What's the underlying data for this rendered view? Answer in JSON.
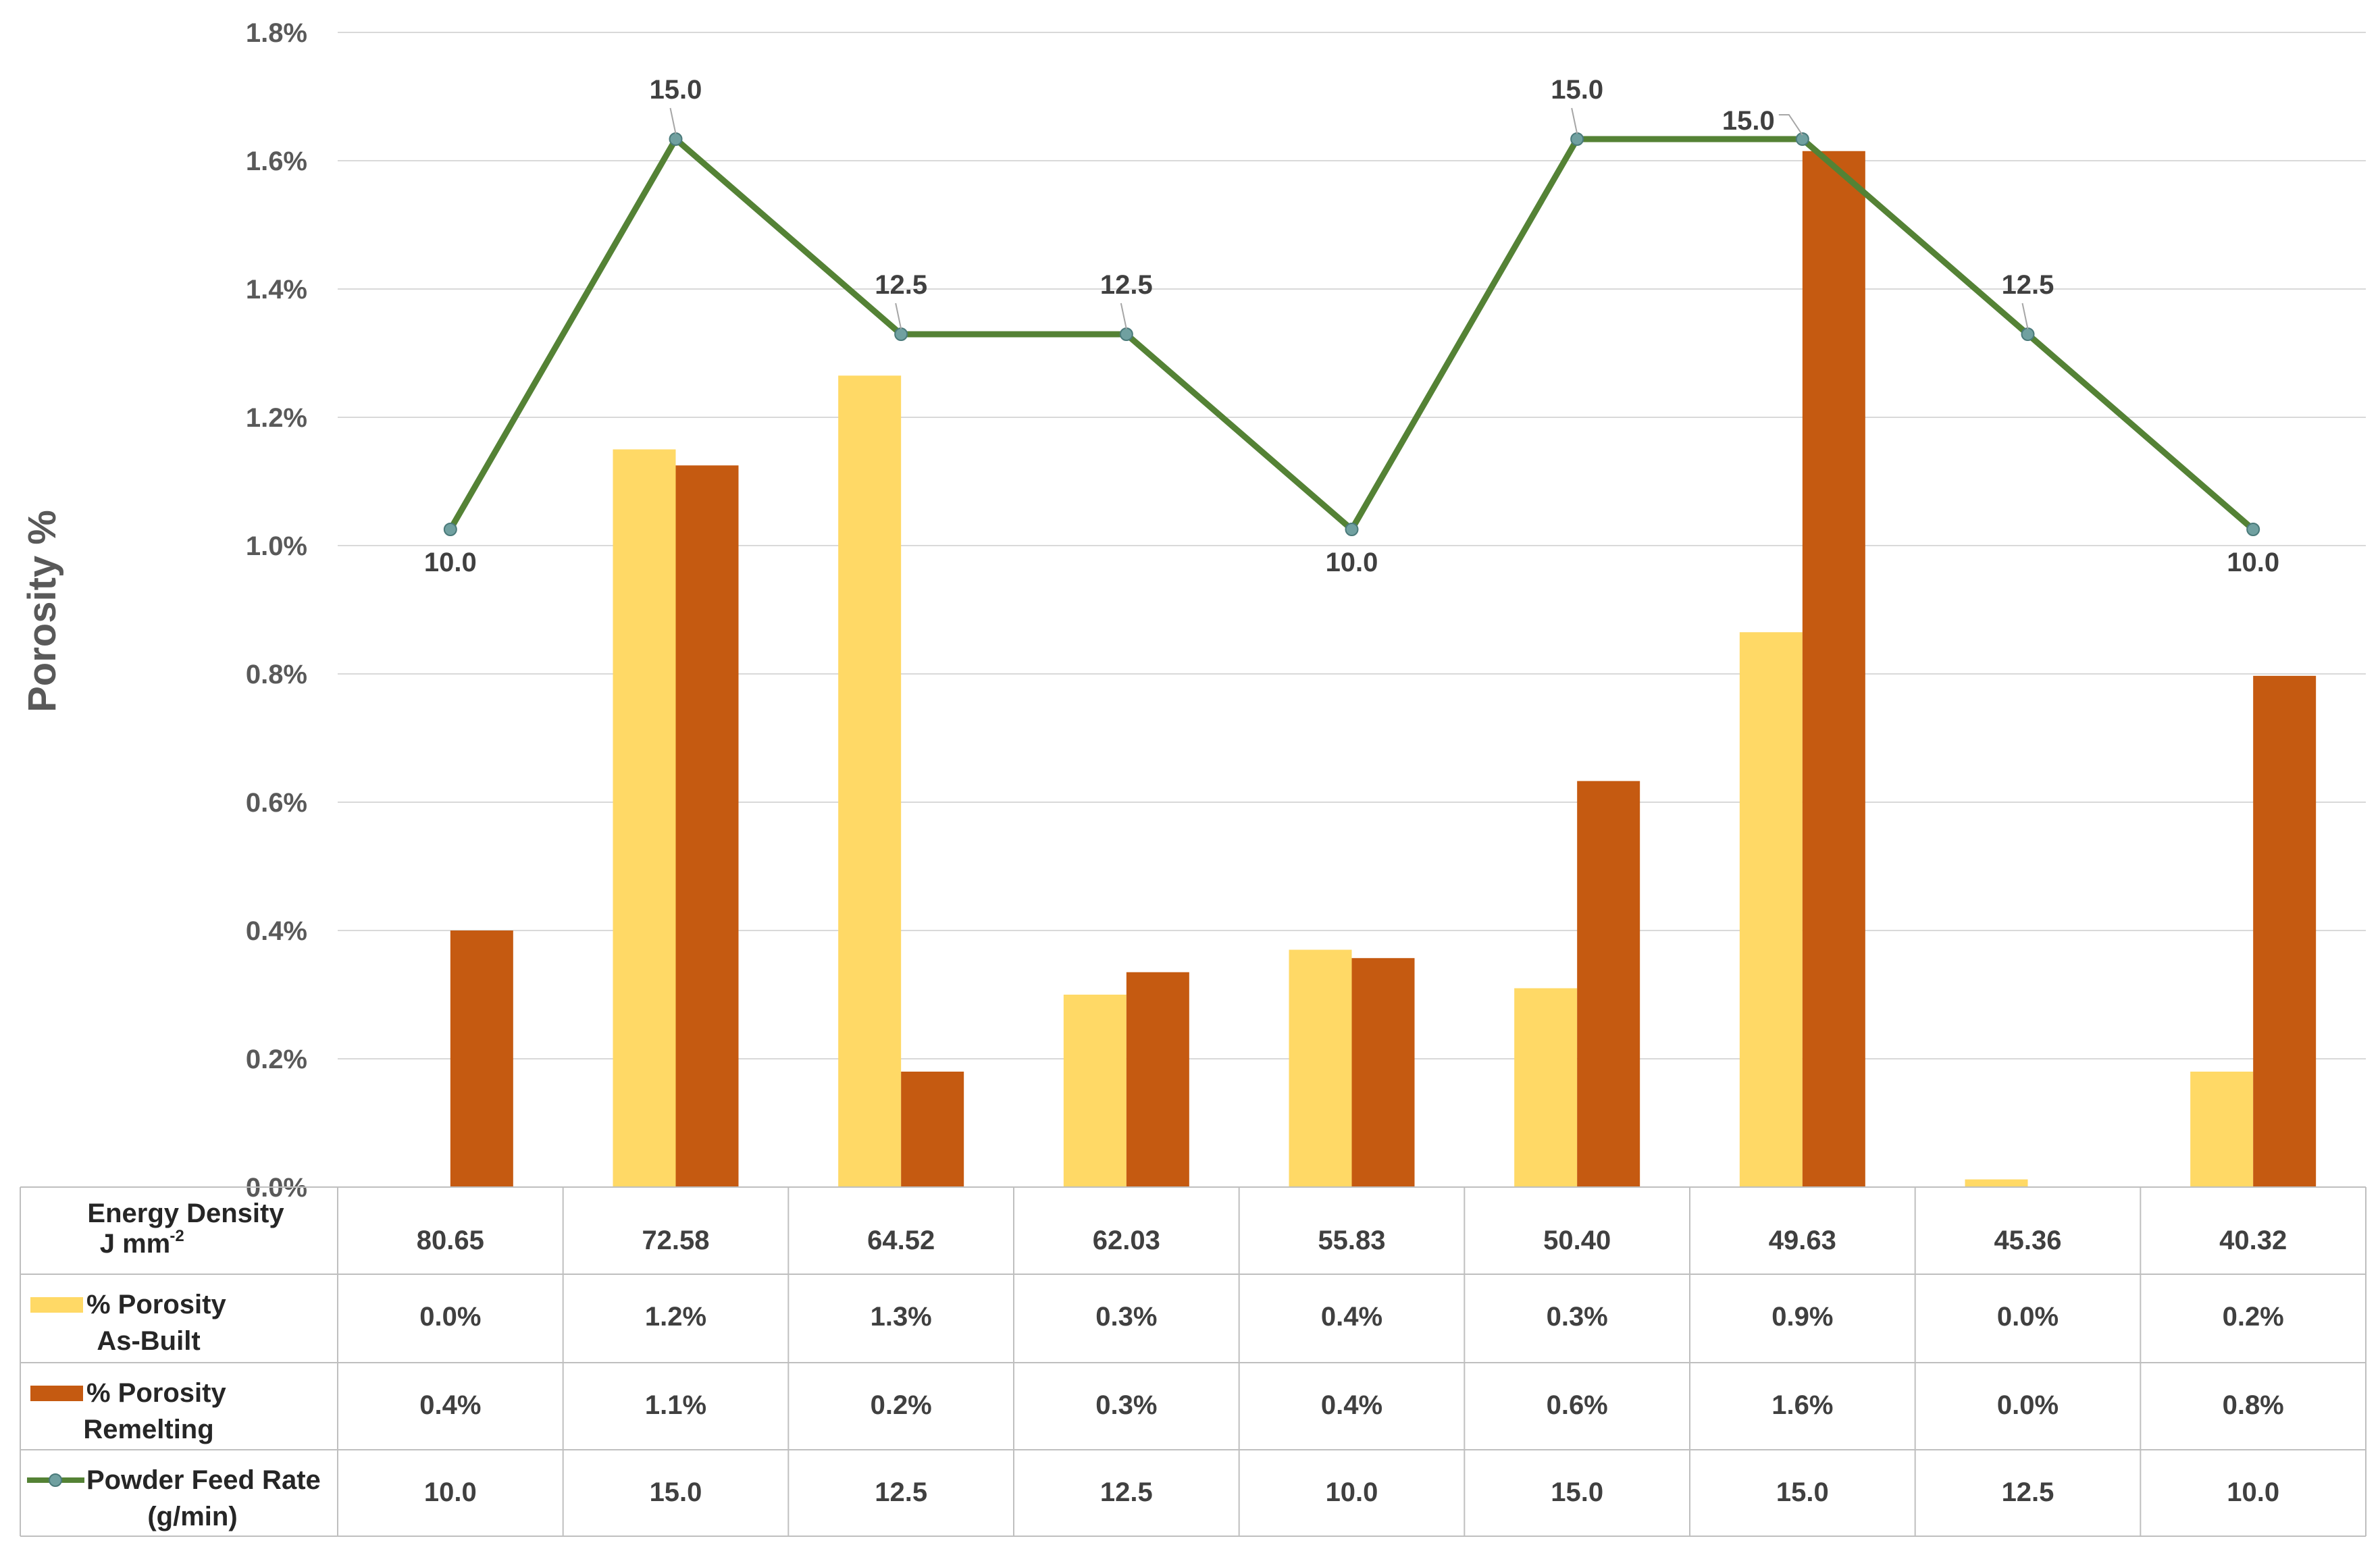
{
  "chart_data": {
    "type": "bar",
    "ylabel": "Porosity %",
    "ylim": [
      0,
      1.8
    ],
    "yticks": [
      "0.0%",
      "0.2%",
      "0.4%",
      "0.6%",
      "0.8%",
      "1.0%",
      "1.2%",
      "1.4%",
      "1.6%",
      "1.8%"
    ],
    "grid": true,
    "categories_label": [
      "Energy Density",
      "J mm",
      "-2"
    ],
    "categories": [
      "80.65",
      "72.58",
      "64.52",
      "62.03",
      "55.83",
      "50.40",
      "49.63",
      "45.36",
      "40.32"
    ],
    "series": [
      {
        "name": "% Porosity As-Built",
        "label_lines": [
          "% Porosity",
          "As-Built"
        ],
        "type": "bar",
        "color": "#FFD966",
        "values": [
          0.0,
          1.15,
          1.265,
          0.3,
          0.37,
          0.31,
          0.865,
          0.012,
          0.18
        ],
        "table_values": [
          "0.0%",
          "1.2%",
          "1.3%",
          "0.3%",
          "0.4%",
          "0.3%",
          "0.9%",
          "0.0%",
          "0.2%"
        ]
      },
      {
        "name": "% Porosity Remelting",
        "label_lines": [
          "% Porosity",
          "Remelting"
        ],
        "type": "bar",
        "color": "#C55A11",
        "values": [
          0.4,
          1.125,
          0.18,
          0.335,
          0.357,
          0.633,
          1.615,
          0.0,
          0.797
        ],
        "table_values": [
          "0.4%",
          "1.1%",
          "0.2%",
          "0.3%",
          "0.4%",
          "0.6%",
          "1.6%",
          "0.0%",
          "0.8%"
        ]
      },
      {
        "name": "Powder Feed Rate (g/min)",
        "label_lines": [
          "Powder Feed Rate",
          "(g/min)"
        ],
        "type": "line",
        "color": "#548235",
        "marker_color": "#70A0A0",
        "values": [
          10.0,
          15.0,
          12.5,
          12.5,
          10.0,
          15.0,
          15.0,
          12.5,
          10.0
        ],
        "table_values": [
          "10.0",
          "15.0",
          "12.5",
          "12.5",
          "10.0",
          "15.0",
          "15.0",
          "12.5",
          "10.0"
        ],
        "data_labels": [
          "10.0",
          "15.0",
          "12.5",
          "12.5",
          "10.0",
          "15.0",
          "15.0",
          "12.5",
          "10.0"
        ],
        "label_positions": [
          "below",
          "above",
          "above",
          "above",
          "below",
          "above",
          "above-left",
          "above",
          "below"
        ]
      }
    ]
  }
}
